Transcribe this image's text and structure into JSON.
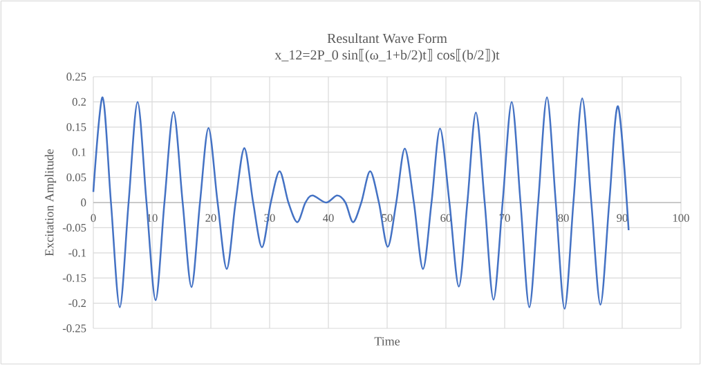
{
  "chart_data": {
    "type": "line",
    "title": "Resultant Wave Form",
    "subtitle": "x_12=2P_0  sin⟦(ω_1+b/2)t⟧  cos⟦(b/2⟧)t",
    "xlabel": "Time",
    "ylabel": "Excitation Amplitude",
    "x": [
      0,
      1.57,
      3.0,
      4.5,
      6.0,
      7.53,
      9.05,
      10.6,
      12.1,
      13.65,
      15.2,
      16.7,
      18.15,
      19.6,
      21.15,
      22.7,
      24.2,
      25.7,
      27.2,
      28.7,
      30.2,
      31.7,
      33.2,
      34.7,
      36.1,
      37.3,
      39.6,
      41.5,
      42.9,
      44.2,
      45.6,
      47.1,
      48.6,
      50.1,
      51.55,
      53.0,
      54.55,
      56.1,
      57.55,
      59.0,
      60.6,
      62.2,
      63.65,
      65.1,
      66.6,
      68.1,
      69.65,
      71.2,
      72.7,
      74.2,
      75.7,
      77.2,
      78.7,
      80.2,
      81.7,
      83.2,
      84.75,
      86.3,
      87.8,
      89.3,
      91.1
    ],
    "series": [
      {
        "color": "#4472c4",
        "values": [
          0.021,
          0.209,
          0,
          -0.208,
          0,
          0.2,
          0,
          -0.194,
          0,
          0.18,
          0,
          -0.168,
          0,
          0.148,
          0,
          -0.132,
          0,
          0.108,
          0,
          -0.089,
          0,
          0.062,
          0,
          -0.039,
          0,
          0.014,
          0,
          0.014,
          0,
          -0.039,
          0,
          0.062,
          0,
          -0.088,
          0,
          0.107,
          0,
          -0.132,
          0,
          0.147,
          0,
          -0.167,
          0,
          0.179,
          0,
          -0.193,
          0,
          0.2,
          0,
          -0.208,
          0,
          0.209,
          0,
          -0.211,
          0,
          0.207,
          0,
          -0.203,
          0,
          0.191,
          -0.055
        ]
      }
    ],
    "xlim": [
      0,
      100
    ],
    "xticks": [
      0,
      10,
      20,
      30,
      40,
      50,
      60,
      70,
      80,
      90,
      100
    ],
    "ylim": [
      -0.25,
      0.25
    ],
    "yticks": [
      -0.25,
      -0.2,
      -0.15,
      -0.1,
      -0.05,
      0,
      0.05,
      0.1,
      0.15,
      0.2,
      0.25
    ],
    "grid": true,
    "marker": "none",
    "line_style": "solid"
  }
}
